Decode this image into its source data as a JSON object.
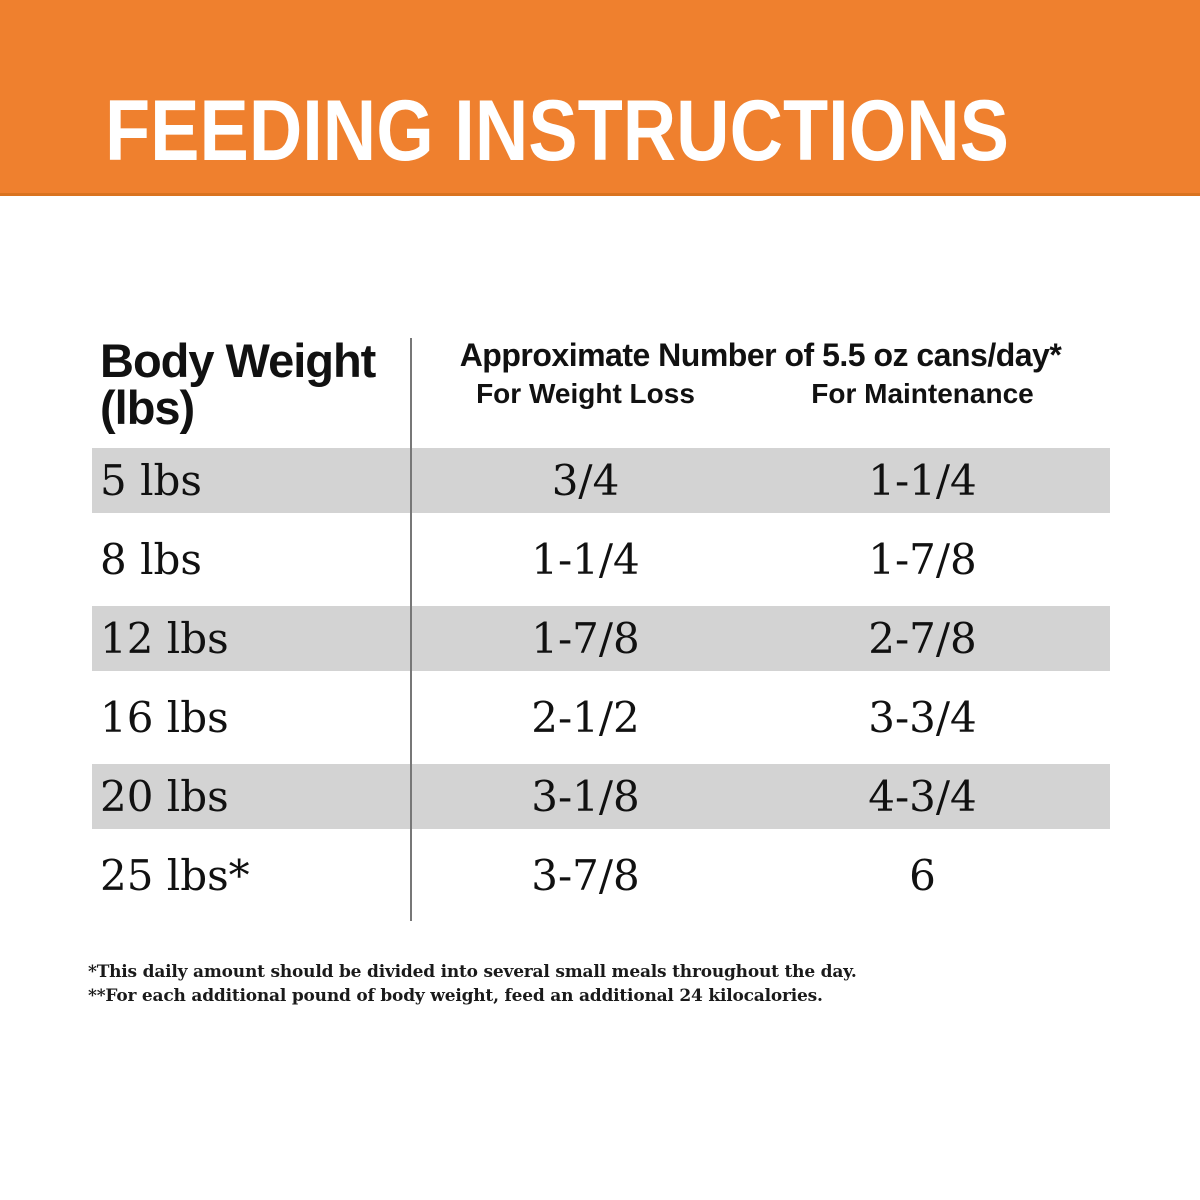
{
  "header": {
    "title": "FEEDING INSTRUCTIONS",
    "background_color": "#EF802E",
    "text_color": "#FFFFFF"
  },
  "table": {
    "weight_header": {
      "line1": "Body Weight",
      "line2": "(lbs)"
    },
    "main_header": "Approximate Number of 5.5 oz cans/day*",
    "sub_headers": [
      "For Weight Loss",
      "For Maintenance"
    ],
    "rows": [
      {
        "weight": "5 lbs",
        "weight_loss": "3/4",
        "maintenance": "1-1/4"
      },
      {
        "weight": "8 lbs",
        "weight_loss": "1-1/4",
        "maintenance": "1-7/8"
      },
      {
        "weight": "12 lbs",
        "weight_loss": "1-7/8",
        "maintenance": "2-7/8"
      },
      {
        "weight": "16 lbs",
        "weight_loss": "2-1/2",
        "maintenance": "3-3/4"
      },
      {
        "weight": "20 lbs",
        "weight_loss": "3-1/8",
        "maintenance": "4-3/4"
      },
      {
        "weight": "25 lbs*",
        "weight_loss": "3-7/8",
        "maintenance": "6"
      }
    ],
    "row_shade_color": "#D3D3D3",
    "divider_color": "#777777"
  },
  "footnotes": [
    "*This daily amount should be divided into several small meals throughout the day.",
    "**For each additional pound of body weight, feed an additional 24 kilocalories."
  ]
}
